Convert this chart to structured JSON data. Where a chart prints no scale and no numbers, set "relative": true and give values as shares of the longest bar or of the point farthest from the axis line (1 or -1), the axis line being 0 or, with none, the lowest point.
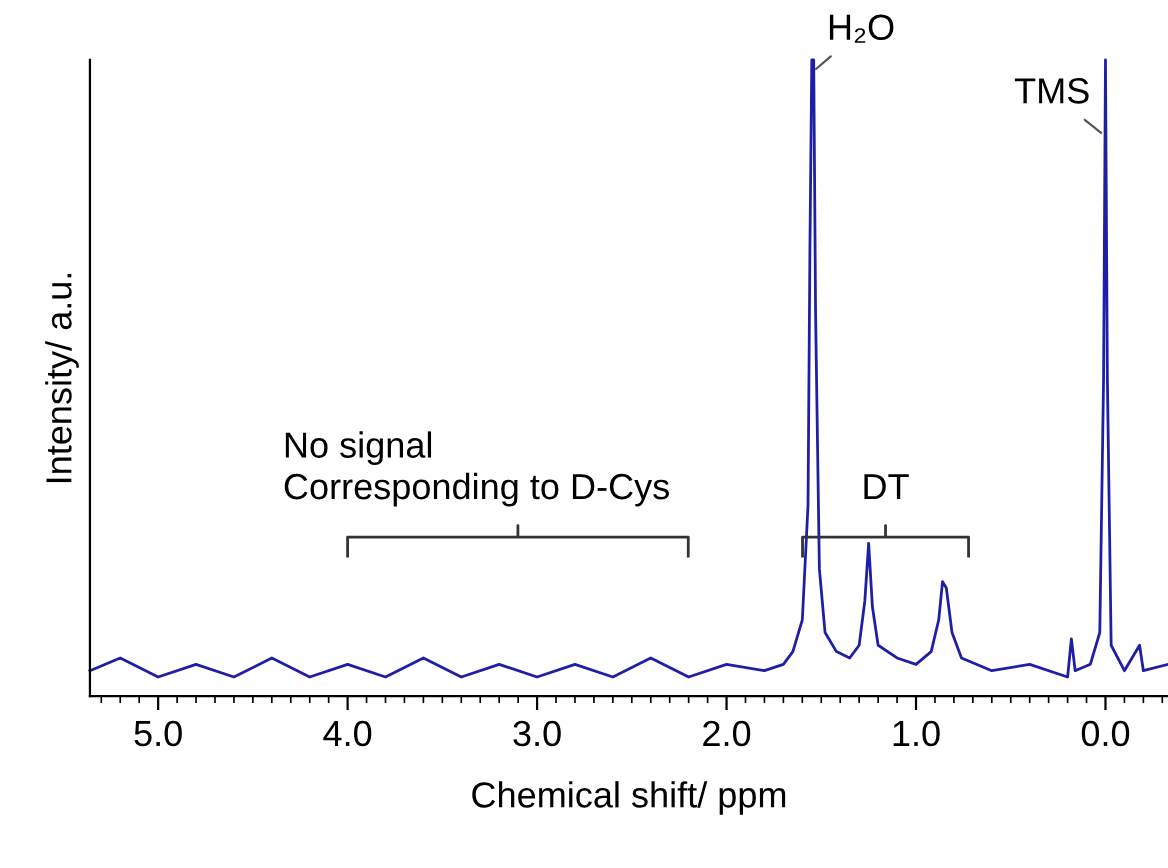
{
  "chart_data": {
    "type": "line",
    "relative": true,
    "xlabel": "Chemical shift/ ppm",
    "ylabel": "Intensity/ a.u.",
    "xlim": [
      5.36,
      -0.33
    ],
    "xticks": [
      {
        "value": 5,
        "label": "5.0"
      },
      {
        "value": 4,
        "label": "4.0"
      },
      {
        "value": 3,
        "label": "3.0"
      },
      {
        "value": 2,
        "label": "2.0"
      },
      {
        "value": 1,
        "label": "1.0"
      },
      {
        "value": 0,
        "label": "0.0"
      }
    ],
    "grid": false,
    "series": [
      {
        "color": "#1f1fa6",
        "x": [
          5.36,
          5.2,
          5.0,
          4.8,
          4.6,
          4.4,
          4.2,
          4.0,
          3.8,
          3.6,
          3.4,
          3.2,
          3.0,
          2.8,
          2.6,
          2.4,
          2.2,
          2.0,
          1.8,
          1.7,
          1.65,
          1.6,
          1.57,
          1.56,
          1.55,
          1.54,
          1.53,
          1.51,
          1.48,
          1.42,
          1.35,
          1.3,
          1.27,
          1.25,
          1.23,
          1.2,
          1.1,
          1.0,
          0.92,
          0.88,
          0.86,
          0.84,
          0.81,
          0.76,
          0.6,
          0.4,
          0.2,
          0.18,
          0.16,
          0.08,
          0.03,
          0.01,
          0.0,
          -0.01,
          -0.03,
          -0.1,
          -0.18,
          -0.2,
          -0.33
        ],
        "values": [
          0.04,
          0.06,
          0.03,
          0.05,
          0.03,
          0.06,
          0.03,
          0.05,
          0.03,
          0.06,
          0.03,
          0.05,
          0.03,
          0.05,
          0.03,
          0.06,
          0.03,
          0.05,
          0.04,
          0.05,
          0.07,
          0.12,
          0.3,
          0.7,
          1.0,
          1.0,
          0.6,
          0.2,
          0.1,
          0.07,
          0.06,
          0.08,
          0.15,
          0.24,
          0.14,
          0.08,
          0.06,
          0.05,
          0.07,
          0.12,
          0.18,
          0.17,
          0.1,
          0.06,
          0.04,
          0.05,
          0.03,
          0.09,
          0.04,
          0.05,
          0.1,
          0.5,
          1.0,
          0.5,
          0.08,
          0.04,
          0.08,
          0.04,
          0.05
        ]
      }
    ],
    "annotations": [
      "No signal\nCorresponding to D-Cys",
      "DT",
      {
        "text": "H₂O",
        "x": 1.55,
        "y": 1.0
      },
      {
        "text": "TMS",
        "x": 0.0,
        "y": 0.9
      }
    ]
  }
}
